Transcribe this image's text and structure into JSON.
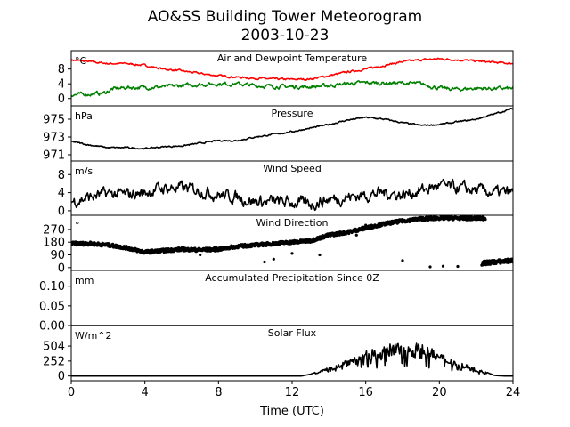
{
  "figure": {
    "title_line1": "AO&SS Building Tower Meteorogram",
    "title_line2": "2003-10-23",
    "xlabel": "Time (UTC)",
    "xticks": [
      0,
      4,
      8,
      12,
      16,
      20,
      24
    ],
    "xlim": [
      0,
      24
    ]
  },
  "chart_data": [
    {
      "type": "line",
      "title": "Air and Dewpoint Temperature",
      "unit": "°C",
      "ylim": [
        -2,
        13
      ],
      "yticks": [
        0,
        4,
        8
      ],
      "series": [
        {
          "color": "#ff0000",
          "noise": 0.25,
          "points": [
            [
              0,
              10.5
            ],
            [
              1,
              10
            ],
            [
              2,
              9.5
            ],
            [
              3,
              9.5
            ],
            [
              4,
              9
            ],
            [
              5,
              8
            ],
            [
              6,
              7.5
            ],
            [
              7,
              6.8
            ],
            [
              8,
              6.2
            ],
            [
              9,
              5.8
            ],
            [
              10,
              5.5
            ],
            [
              11,
              5.3
            ],
            [
              12,
              5.2
            ],
            [
              13,
              5.3
            ],
            [
              14,
              6.2
            ],
            [
              15,
              7.2
            ],
            [
              16,
              8
            ],
            [
              17,
              9
            ],
            [
              18,
              10
            ],
            [
              19,
              10.5
            ],
            [
              20,
              10.8
            ],
            [
              21,
              10.5
            ],
            [
              22,
              10.2
            ],
            [
              23,
              9.8
            ],
            [
              24,
              9.5
            ]
          ]
        },
        {
          "color": "#008000",
          "noise": 0.5,
          "points": [
            [
              0,
              1
            ],
            [
              1,
              1.2
            ],
            [
              1.8,
              1.5
            ],
            [
              2.2,
              2.5
            ],
            [
              3,
              3
            ],
            [
              4,
              3
            ],
            [
              5,
              3.2
            ],
            [
              6,
              3.5
            ],
            [
              7,
              3.8
            ],
            [
              8,
              4
            ],
            [
              9,
              4
            ],
            [
              10,
              3.5
            ],
            [
              11,
              3.3
            ],
            [
              12,
              3.2
            ],
            [
              13,
              3.2
            ],
            [
              14,
              3.5
            ],
            [
              15,
              4
            ],
            [
              16,
              4.3
            ],
            [
              17,
              4.2
            ],
            [
              18,
              4.2
            ],
            [
              19,
              4
            ],
            [
              20,
              2.8
            ],
            [
              21,
              2.5
            ],
            [
              22,
              2.8
            ],
            [
              23,
              2.7
            ],
            [
              24,
              2.7
            ]
          ]
        }
      ]
    },
    {
      "type": "line",
      "title": "Pressure",
      "unit": "hPa",
      "ylim": [
        970.3,
        976.5
      ],
      "yticks": [
        971,
        973,
        975
      ],
      "series": [
        {
          "color": "#000000",
          "noise": 0.08,
          "points": [
            [
              0,
              972.5
            ],
            [
              1,
              972.1
            ],
            [
              2,
              971.8
            ],
            [
              3,
              971.8
            ],
            [
              4,
              971.7
            ],
            [
              5,
              971.9
            ],
            [
              6,
              972
            ],
            [
              7,
              972.3
            ],
            [
              8,
              972.6
            ],
            [
              9,
              972.6
            ],
            [
              10,
              973
            ],
            [
              11,
              973.3
            ],
            [
              12,
              973.6
            ],
            [
              13,
              974
            ],
            [
              14,
              974.4
            ],
            [
              15,
              974.9
            ],
            [
              16,
              975.2
            ],
            [
              17,
              975
            ],
            [
              18,
              974.6
            ],
            [
              19,
              974.3
            ],
            [
              20,
              974.4
            ],
            [
              21,
              974.7
            ],
            [
              22,
              975
            ],
            [
              23,
              975.6
            ],
            [
              24,
              976.2
            ]
          ]
        }
      ]
    },
    {
      "type": "line",
      "title": "Wind Speed",
      "unit": "m/s",
      "ylim": [
        -1,
        11
      ],
      "yticks": [
        0,
        4,
        8
      ],
      "series": [
        {
          "color": "#000000",
          "noise": 1.3,
          "points": [
            [
              0,
              2
            ],
            [
              1,
              3
            ],
            [
              2,
              3.8
            ],
            [
              3,
              3.5
            ],
            [
              4,
              4
            ],
            [
              5,
              5
            ],
            [
              6,
              5
            ],
            [
              7,
              4.5
            ],
            [
              8,
              3.5
            ],
            [
              9,
              3
            ],
            [
              10,
              2
            ],
            [
              11,
              2
            ],
            [
              12,
              1.8
            ],
            [
              13,
              1.5
            ],
            [
              14,
              2.5
            ],
            [
              15,
              3
            ],
            [
              16,
              3.5
            ],
            [
              17,
              4
            ],
            [
              18,
              3.5
            ],
            [
              19,
              4.5
            ],
            [
              20,
              5.5
            ],
            [
              21,
              5
            ],
            [
              22,
              4.5
            ],
            [
              23,
              4
            ],
            [
              24,
              4
            ]
          ]
        }
      ]
    },
    {
      "type": "scatter",
      "title": "Wind Direction",
      "unit": "°",
      "ylim": [
        -20,
        370
      ],
      "yticks": [
        0,
        90,
        180,
        270
      ],
      "series": [
        {
          "color": "#000000",
          "noise": 12,
          "dense": true,
          "points": [
            [
              0,
              170
            ],
            [
              1,
              170
            ],
            [
              2,
              160
            ],
            [
              3,
              140
            ],
            [
              4,
              110
            ],
            [
              5,
              120
            ],
            [
              6,
              130
            ],
            [
              7,
              125
            ],
            [
              8,
              130
            ],
            [
              9,
              150
            ],
            [
              10,
              160
            ],
            [
              11,
              170
            ],
            [
              12,
              180
            ],
            [
              13,
              190
            ],
            [
              14,
              230
            ],
            [
              15,
              250
            ],
            [
              16,
              280
            ],
            [
              17,
              310
            ],
            [
              18,
              330
            ],
            [
              19,
              345
            ],
            [
              20,
              350
            ],
            [
              21,
              350
            ],
            [
              22,
              348
            ],
            [
              22.5,
              350
            ]
          ]
        },
        {
          "color": "#000000",
          "noise": 15,
          "dense": true,
          "points": [
            [
              22.3,
              30
            ],
            [
              23,
              40
            ],
            [
              24,
              50
            ]
          ]
        },
        {
          "color": "#000000",
          "noise": 0,
          "dense": false,
          "points": [
            [
              7,
              90
            ],
            [
              10.5,
              40
            ],
            [
              11,
              60
            ],
            [
              12,
              100
            ],
            [
              13.5,
              90
            ],
            [
              15.5,
              230
            ],
            [
              16,
              300
            ],
            [
              18,
              50
            ],
            [
              19.5,
              5
            ],
            [
              20.2,
              10
            ],
            [
              21,
              8
            ]
          ]
        }
      ]
    },
    {
      "type": "line",
      "title": "Accumulated Precipitation Since 0Z",
      "unit": "mm",
      "ylim": [
        0,
        0.14
      ],
      "yticks": [
        0.0,
        0.05,
        0.1
      ],
      "series": [
        {
          "color": "#000000",
          "noise": 0,
          "points": [
            [
              0,
              0
            ],
            [
              24,
              0
            ]
          ]
        }
      ]
    },
    {
      "type": "line",
      "title": "Solar Flux",
      "unit": "W/m^2",
      "ylim": [
        -80,
        850
      ],
      "yticks": [
        0,
        252,
        504
      ],
      "series": [
        {
          "color": "#000000",
          "noise": 0,
          "solar": true,
          "points": [
            [
              0,
              0
            ],
            [
              12.5,
              0
            ],
            [
              13,
              30
            ],
            [
              14,
              150
            ],
            [
              15,
              300
            ],
            [
              16,
              420
            ],
            [
              17,
              500
            ],
            [
              17.5,
              560
            ],
            [
              18,
              580
            ],
            [
              19,
              550
            ],
            [
              20,
              400
            ],
            [
              21,
              260
            ],
            [
              22,
              130
            ],
            [
              23,
              10
            ],
            [
              23.5,
              0
            ],
            [
              24,
              0
            ]
          ]
        }
      ]
    }
  ]
}
